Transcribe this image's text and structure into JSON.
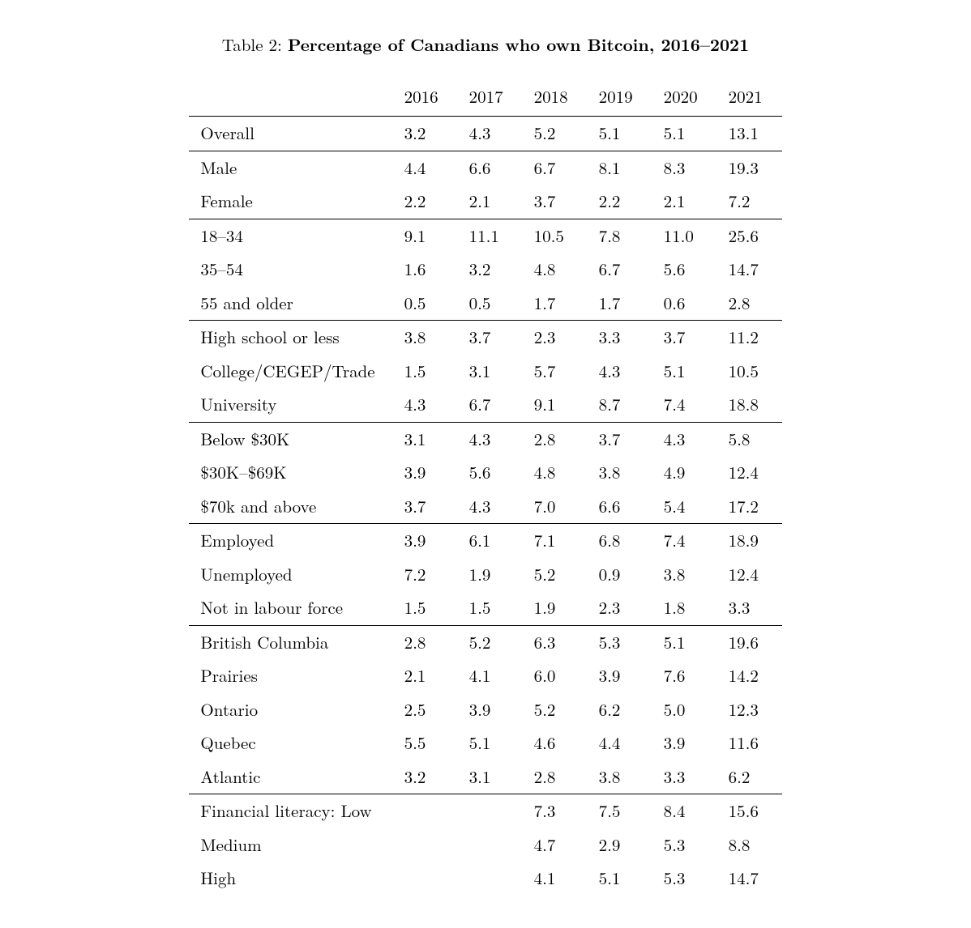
{
  "caption_label": "Table 2: ",
  "caption_title": "Percentage of Canadians who own Bitcoin, 2016–2021",
  "table": {
    "type": "table",
    "background_color": "#ffffff",
    "text_color": "#000000",
    "rule_color": "#000000",
    "font_family": "CMU Serif / Times serif",
    "font_size_pt": 12,
    "header_font_weight": "normal",
    "columns": [
      "",
      "2016",
      "2017",
      "2018",
      "2019",
      "2020",
      "2021"
    ],
    "sections": [
      {
        "rows": [
          {
            "label": "Overall",
            "values": [
              "3.2",
              "4.3",
              "5.2",
              "5.1",
              "5.1",
              "13.1"
            ]
          }
        ]
      },
      {
        "rows": [
          {
            "label": "Male",
            "values": [
              "4.4",
              "6.6",
              "6.7",
              "8.1",
              "8.3",
              "19.3"
            ]
          },
          {
            "label": "Female",
            "values": [
              "2.2",
              "2.1",
              "3.7",
              "2.2",
              "2.1",
              "7.2"
            ]
          }
        ]
      },
      {
        "rows": [
          {
            "label": "18–34",
            "values": [
              "9.1",
              "11.1",
              "10.5",
              "7.8",
              "11.0",
              "25.6"
            ]
          },
          {
            "label": "35–54",
            "values": [
              "1.6",
              "3.2",
              "4.8",
              "6.7",
              "5.6",
              "14.7"
            ]
          },
          {
            "label": "55 and older",
            "values": [
              "0.5",
              "0.5",
              "1.7",
              "1.7",
              "0.6",
              "2.8"
            ]
          }
        ]
      },
      {
        "rows": [
          {
            "label": "High school or less",
            "values": [
              "3.8",
              "3.7",
              "2.3",
              "3.3",
              "3.7",
              "11.2"
            ]
          },
          {
            "label": "College/CEGEP/Trade",
            "values": [
              "1.5",
              "3.1",
              "5.7",
              "4.3",
              "5.1",
              "10.5"
            ]
          },
          {
            "label": "University",
            "values": [
              "4.3",
              "6.7",
              "9.1",
              "8.7",
              "7.4",
              "18.8"
            ]
          }
        ]
      },
      {
        "rows": [
          {
            "label": "Below $30K",
            "values": [
              "3.1",
              "4.3",
              "2.8",
              "3.7",
              "4.3",
              "5.8"
            ]
          },
          {
            "label": "$30K–$69K",
            "values": [
              "3.9",
              "5.6",
              "4.8",
              "3.8",
              "4.9",
              "12.4"
            ]
          },
          {
            "label": "$70k and above",
            "values": [
              "3.7",
              "4.3",
              "7.0",
              "6.6",
              "5.4",
              "17.2"
            ]
          }
        ]
      },
      {
        "rows": [
          {
            "label": "Employed",
            "values": [
              "3.9",
              "6.1",
              "7.1",
              "6.8",
              "7.4",
              "18.9"
            ]
          },
          {
            "label": "Unemployed",
            "values": [
              "7.2",
              "1.9",
              "5.2",
              "0.9",
              "3.8",
              "12.4"
            ]
          },
          {
            "label": "Not in labour force",
            "values": [
              "1.5",
              "1.5",
              "1.9",
              "2.3",
              "1.8",
              "3.3"
            ]
          }
        ]
      },
      {
        "rows": [
          {
            "label": "British Columbia",
            "values": [
              "2.8",
              "5.2",
              "6.3",
              "5.3",
              "5.1",
              "19.6"
            ]
          },
          {
            "label": "Prairies",
            "values": [
              "2.1",
              "4.1",
              "6.0",
              "3.9",
              "7.6",
              "14.2"
            ]
          },
          {
            "label": "Ontario",
            "values": [
              "2.5",
              "3.9",
              "5.2",
              "6.2",
              "5.0",
              "12.3"
            ]
          },
          {
            "label": "Quebec",
            "values": [
              "5.5",
              "5.1",
              "4.6",
              "4.4",
              "3.9",
              "11.6"
            ]
          },
          {
            "label": "Atlantic",
            "values": [
              "3.2",
              "3.1",
              "2.8",
              "3.8",
              "3.3",
              "6.2"
            ]
          }
        ]
      },
      {
        "rows": [
          {
            "label": "Financial literacy: Low",
            "values": [
              "",
              "",
              "7.3",
              "7.5",
              "8.4",
              "15.6"
            ]
          },
          {
            "label": "Medium",
            "values": [
              "",
              "",
              "4.7",
              "2.9",
              "5.3",
              "8.8"
            ]
          },
          {
            "label": "High",
            "values": [
              "",
              "",
              "4.1",
              "5.1",
              "5.3",
              "14.7"
            ]
          }
        ]
      }
    ]
  }
}
